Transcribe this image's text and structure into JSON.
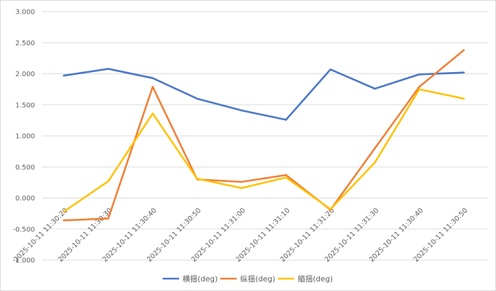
{
  "chart_data": {
    "type": "line",
    "title": "",
    "xlabel": "",
    "ylabel": "",
    "ylim": [
      -1.0,
      3.0
    ],
    "y_ticks": [
      "-1.000",
      "-0.500",
      "0.000",
      "0.500",
      "1.000",
      "1.500",
      "2.000",
      "2.500",
      "3.000"
    ],
    "y_tick_values": [
      -1.0,
      -0.5,
      0.0,
      0.5,
      1.0,
      1.5,
      2.0,
      2.5,
      3.0
    ],
    "categories": [
      "2025-10-11 11:30:20",
      "2025-10-11 11:30:30",
      "2025-10-11 11:30:40",
      "2025-10-11 11:30:50",
      "2025-10-11 11:31:00",
      "2025-10-11 11:31:10",
      "2025-10-11 11:31:20",
      "2025-10-11 11:31:30",
      "2025-10-11 11:30:40",
      "2025-10-11 11:30:50"
    ],
    "grid": true,
    "legend_position": "bottom",
    "series": [
      {
        "name": "横揺(deg)",
        "color": "#4472C4",
        "values": [
          1.97,
          2.08,
          1.93,
          1.6,
          1.41,
          1.26,
          2.07,
          1.76,
          1.99,
          2.02
        ]
      },
      {
        "name": "纵揺(deg)",
        "color": "#ED7D31",
        "values": [
          -0.36,
          -0.33,
          1.79,
          0.3,
          0.26,
          0.37,
          -0.19,
          0.8,
          1.79,
          2.38
        ]
      },
      {
        "name": "艏揺(deg)",
        "color": "#FFC000",
        "values": [
          -0.22,
          0.27,
          1.36,
          0.31,
          0.16,
          0.33,
          -0.18,
          0.57,
          1.75,
          1.6
        ]
      }
    ]
  }
}
